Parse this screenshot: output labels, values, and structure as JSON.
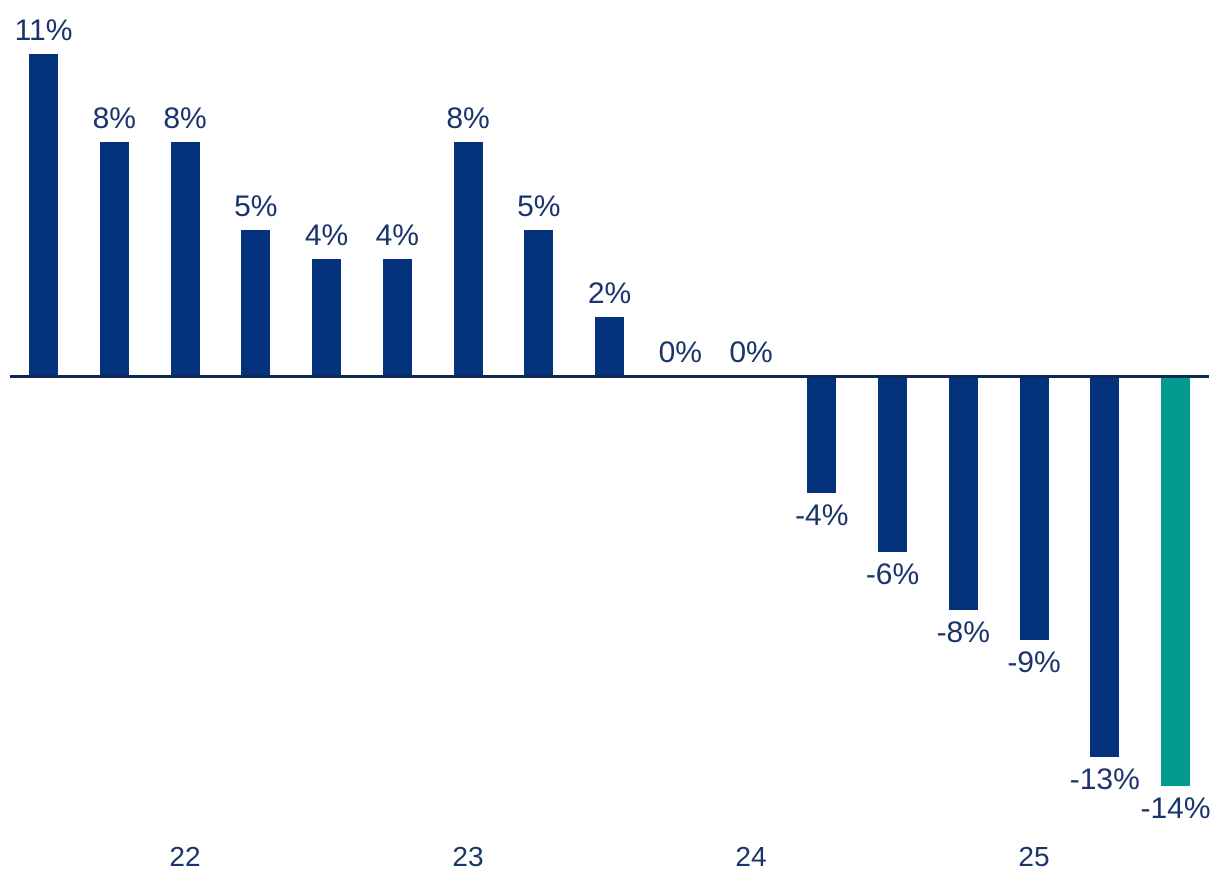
{
  "chart_data": {
    "type": "bar",
    "title": "",
    "xlabel": "",
    "ylabel": "",
    "unit": "%",
    "values": [
      11,
      8,
      8,
      5,
      4,
      4,
      8,
      5,
      2,
      0,
      0,
      -4,
      -6,
      -8,
      -9,
      -13,
      -14
    ],
    "labels": [
      "11%",
      "8%",
      "8%",
      "5%",
      "4%",
      "4%",
      "8%",
      "5%",
      "2%",
      "0%",
      "0%",
      "-4%",
      "-6%",
      "-8%",
      "-9%",
      "-13%",
      "-14%"
    ],
    "highlight_index": 16,
    "x_ticks": [
      {
        "label": "22",
        "bar_index": 2
      },
      {
        "label": "23",
        "bar_index": 6
      },
      {
        "label": "24",
        "bar_index": 10
      },
      {
        "label": "25",
        "bar_index": 14
      }
    ],
    "ylim": [
      -14,
      11
    ],
    "grid": false,
    "legend": "none",
    "colors": {
      "bar_default": "#04327d",
      "bar_highlight": "#009a90",
      "axis_line": "#0e2952",
      "label_text": "#1a356b"
    }
  }
}
